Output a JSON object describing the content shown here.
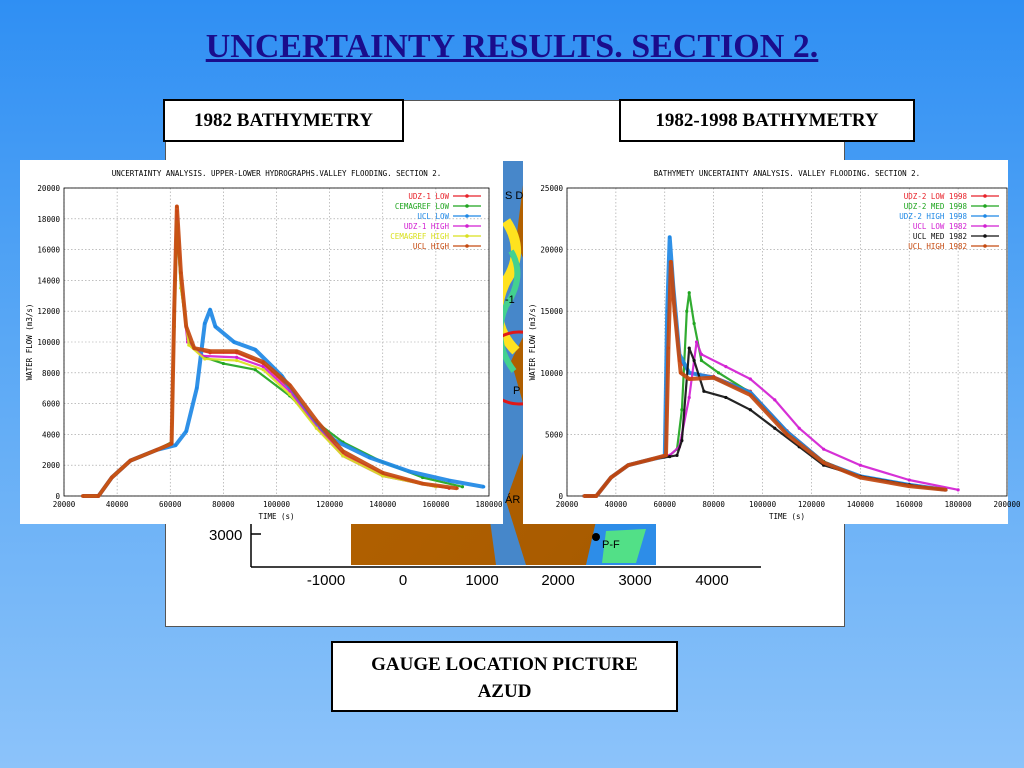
{
  "slide": {
    "title": "UNCERTAINTY RESULTS. SECTION 2.",
    "label_left": "1982 BATHYMETRY",
    "label_right": "1982-1998 BATHYMETRY",
    "label_bottom_line1": "GAUGE LOCATION PICTURE",
    "label_bottom_line2": "AZUD"
  },
  "background_map": {
    "x_ticks": [
      "-1000",
      "0",
      "1000",
      "2000",
      "3000",
      "4000"
    ],
    "y_tick": "3000",
    "gauge_label": "P-F",
    "fragment_labels": [
      "S D",
      "-1",
      "P",
      "ÁR"
    ]
  },
  "chart_data": [
    {
      "type": "line",
      "title": "UNCERTAINTY ANALYSIS. UPPER-LOWER HYDROGRAPHS.VALLEY FLOODING. SECTION 2.",
      "xlabel": "TIME (s)",
      "ylabel": "WATER FLOW (m3/s)",
      "xlim": [
        20000,
        180000
      ],
      "ylim": [
        0,
        20000
      ],
      "xticks": [
        20000,
        40000,
        60000,
        80000,
        100000,
        120000,
        140000,
        160000,
        180000
      ],
      "yticks": [
        0,
        2000,
        4000,
        6000,
        8000,
        10000,
        12000,
        14000,
        16000,
        18000,
        20000
      ],
      "grid": true,
      "legend_position": "top-right",
      "series": [
        {
          "name": "UDZ-1 LOW",
          "color": "#e8222a",
          "marker": "+",
          "points": [
            [
              27000,
              0
            ],
            [
              33000,
              0
            ],
            [
              38000,
              1200
            ],
            [
              45000,
              2300
            ],
            [
              55000,
              3000
            ],
            [
              60500,
              3400
            ],
            [
              61500,
              12000
            ],
            [
              62500,
              18500
            ],
            [
              64000,
              14000
            ],
            [
              66500,
              10200
            ],
            [
              70000,
              9500
            ],
            [
              75000,
              9300
            ],
            [
              85000,
              9300
            ],
            [
              95000,
              8600
            ],
            [
              105000,
              7000
            ],
            [
              115000,
              4600
            ],
            [
              125000,
              2700
            ],
            [
              140000,
              1400
            ],
            [
              155000,
              800
            ],
            [
              165000,
              500
            ]
          ]
        },
        {
          "name": "CEMAGREF LOW",
          "color": "#1fa51f",
          "marker": "+",
          "points": [
            [
              27000,
              0
            ],
            [
              33000,
              0
            ],
            [
              38000,
              1200
            ],
            [
              45000,
              2300
            ],
            [
              55000,
              3000
            ],
            [
              60500,
              3500
            ],
            [
              61500,
              11000
            ],
            [
              62500,
              17500
            ],
            [
              64000,
              13500
            ],
            [
              67000,
              10000
            ],
            [
              73000,
              9000
            ],
            [
              80000,
              8600
            ],
            [
              92000,
              8200
            ],
            [
              105000,
              6500
            ],
            [
              115000,
              4800
            ],
            [
              125000,
              3500
            ],
            [
              140000,
              2200
            ],
            [
              155000,
              1200
            ],
            [
              170000,
              600
            ]
          ]
        },
        {
          "name": "UCL LOW",
          "color": "#1e88e5",
          "marker": "o",
          "points": [
            [
              27000,
              0
            ],
            [
              33000,
              0
            ],
            [
              38000,
              1200
            ],
            [
              45000,
              2300
            ],
            [
              55000,
              3000
            ],
            [
              62000,
              3300
            ],
            [
              66000,
              4200
            ],
            [
              70000,
              7000
            ],
            [
              73000,
              11200
            ],
            [
              75000,
              12100
            ],
            [
              77000,
              11000
            ],
            [
              84000,
              10000
            ],
            [
              92000,
              9500
            ],
            [
              102000,
              7800
            ],
            [
              112000,
              5200
            ],
            [
              122000,
              3600
            ],
            [
              135000,
              2500
            ],
            [
              150000,
              1600
            ],
            [
              165000,
              1000
            ],
            [
              178000,
              600
            ]
          ]
        },
        {
          "name": "UDZ-1 HIGH",
          "color": "#d21fd2",
          "marker": "x",
          "points": [
            [
              27000,
              0
            ],
            [
              33000,
              0
            ],
            [
              38000,
              1200
            ],
            [
              45000,
              2300
            ],
            [
              55000,
              3000
            ],
            [
              60500,
              3400
            ],
            [
              61500,
              11500
            ],
            [
              62500,
              18000
            ],
            [
              64000,
              13800
            ],
            [
              66500,
              10000
            ],
            [
              72000,
              9100
            ],
            [
              85000,
              9000
            ],
            [
              95000,
              8400
            ],
            [
              105000,
              6800
            ],
            [
              115000,
              4500
            ],
            [
              125000,
              2600
            ],
            [
              140000,
              1300
            ],
            [
              160000,
              600
            ]
          ]
        },
        {
          "name": "CEMAGREF HIGH",
          "color": "#d9e01f",
          "marker": "+",
          "points": [
            [
              27000,
              0
            ],
            [
              33000,
              0
            ],
            [
              38000,
              1200
            ],
            [
              45000,
              2300
            ],
            [
              55000,
              3000
            ],
            [
              60500,
              3400
            ],
            [
              61500,
              11000
            ],
            [
              62500,
              17800
            ],
            [
              64000,
              13500
            ],
            [
              67000,
              9800
            ],
            [
              73000,
              8900
            ],
            [
              85000,
              8800
            ],
            [
              95000,
              8200
            ],
            [
              105000,
              6600
            ],
            [
              115000,
              4400
            ],
            [
              125000,
              2600
            ],
            [
              140000,
              1300
            ],
            [
              160000,
              600
            ]
          ]
        },
        {
          "name": "UCL HIGH",
          "color": "#c54a10",
          "marker": "*",
          "points": [
            [
              27000,
              0
            ],
            [
              33000,
              0
            ],
            [
              38000,
              1200
            ],
            [
              45000,
              2300
            ],
            [
              55000,
              3000
            ],
            [
              60500,
              3400
            ],
            [
              61500,
              12000
            ],
            [
              62500,
              18800
            ],
            [
              64000,
              14500
            ],
            [
              66000,
              11000
            ],
            [
              69000,
              9600
            ],
            [
              75000,
              9400
            ],
            [
              85000,
              9400
            ],
            [
              95000,
              8700
            ],
            [
              105000,
              7200
            ],
            [
              115000,
              4900
            ],
            [
              125000,
              2900
            ],
            [
              140000,
              1500
            ],
            [
              155000,
              800
            ],
            [
              168000,
              500
            ]
          ]
        }
      ]
    },
    {
      "type": "line",
      "title": "BATHYMETY UNCERTAINTY ANALYSIS. VALLEY FLOODING. SECTION 2.",
      "xlabel": "TIME (s)",
      "ylabel": "WATER FLOW (m3/s)",
      "xlim": [
        20000,
        200000
      ],
      "ylim": [
        0,
        25000
      ],
      "xticks": [
        20000,
        40000,
        60000,
        80000,
        100000,
        120000,
        140000,
        160000,
        180000,
        200000
      ],
      "yticks": [
        0,
        5000,
        10000,
        15000,
        20000,
        25000
      ],
      "grid": true,
      "legend_position": "top-right",
      "series": [
        {
          "name": "UDZ-2 LOW 1998",
          "color": "#e8222a",
          "marker": "+",
          "points": [
            [
              27000,
              0
            ],
            [
              32000,
              0
            ],
            [
              38000,
              1500
            ],
            [
              45000,
              2500
            ],
            [
              55000,
              3000
            ],
            [
              60500,
              3300
            ],
            [
              61000,
              12000
            ],
            [
              62000,
              19000
            ],
            [
              63500,
              16000
            ],
            [
              66000,
              11000
            ],
            [
              70000,
              10000
            ],
            [
              80000,
              9700
            ],
            [
              95000,
              8500
            ],
            [
              110000,
              5300
            ],
            [
              125000,
              2800
            ],
            [
              140000,
              1600
            ],
            [
              160000,
              900
            ],
            [
              175000,
              500
            ]
          ]
        },
        {
          "name": "UDZ-2 MED 1998",
          "color": "#1fa51f",
          "marker": "+",
          "points": [
            [
              27000,
              0
            ],
            [
              32000,
              0
            ],
            [
              38000,
              1500
            ],
            [
              45000,
              2500
            ],
            [
              55000,
              3000
            ],
            [
              62000,
              3300
            ],
            [
              65000,
              3800
            ],
            [
              67000,
              7000
            ],
            [
              69000,
              15000
            ],
            [
              70000,
              16500
            ],
            [
              72000,
              14000
            ],
            [
              75000,
              11000
            ],
            [
              82000,
              10000
            ],
            [
              95000,
              8400
            ],
            [
              110000,
              5200
            ],
            [
              125000,
              2800
            ],
            [
              140000,
              1600
            ],
            [
              160000,
              900
            ],
            [
              175000,
              500
            ]
          ]
        },
        {
          "name": "UDZ-2 HIGH 1998",
          "color": "#1e88e5",
          "marker": "o",
          "points": [
            [
              27000,
              0
            ],
            [
              32000,
              0
            ],
            [
              38000,
              1500
            ],
            [
              45000,
              2500
            ],
            [
              55000,
              3000
            ],
            [
              60000,
              3200
            ],
            [
              61000,
              15000
            ],
            [
              62000,
              21000
            ],
            [
              63500,
              17000
            ],
            [
              66000,
              11500
            ],
            [
              70000,
              10000
            ],
            [
              80000,
              9600
            ],
            [
              95000,
              8400
            ],
            [
              110000,
              5200
            ],
            [
              125000,
              2700
            ],
            [
              140000,
              1600
            ],
            [
              160000,
              900
            ],
            [
              175000,
              500
            ]
          ]
        },
        {
          "name": "UCL LOW 1982",
          "color": "#d21fd2",
          "marker": "x",
          "points": [
            [
              27000,
              0
            ],
            [
              32000,
              0
            ],
            [
              38000,
              1500
            ],
            [
              45000,
              2500
            ],
            [
              55000,
              3000
            ],
            [
              62000,
              3300
            ],
            [
              66000,
              4000
            ],
            [
              70000,
              8000
            ],
            [
              73000,
              12500
            ],
            [
              75000,
              11500
            ],
            [
              85000,
              10500
            ],
            [
              95000,
              9500
            ],
            [
              105000,
              7800
            ],
            [
              115000,
              5500
            ],
            [
              125000,
              3800
            ],
            [
              140000,
              2500
            ],
            [
              160000,
              1300
            ],
            [
              180000,
              500
            ]
          ]
        },
        {
          "name": "UCL MED 1982",
          "color": "#111111",
          "marker": "^",
          "points": [
            [
              27000,
              0
            ],
            [
              32000,
              0
            ],
            [
              38000,
              1500
            ],
            [
              45000,
              2500
            ],
            [
              55000,
              3000
            ],
            [
              62000,
              3200
            ],
            [
              65000,
              3300
            ],
            [
              67000,
              4500
            ],
            [
              70000,
              12000
            ],
            [
              72000,
              11000
            ],
            [
              76000,
              8500
            ],
            [
              85000,
              8000
            ],
            [
              95000,
              7000
            ],
            [
              105000,
              5500
            ],
            [
              115000,
              4000
            ],
            [
              125000,
              2500
            ],
            [
              140000,
              1600
            ],
            [
              160000,
              900
            ],
            [
              175000,
              500
            ]
          ]
        },
        {
          "name": "UCL HIGH 1982",
          "color": "#c54a10",
          "marker": "*",
          "points": [
            [
              27000,
              0
            ],
            [
              32000,
              0
            ],
            [
              38000,
              1500
            ],
            [
              45000,
              2500
            ],
            [
              55000,
              3000
            ],
            [
              60500,
              3300
            ],
            [
              61500,
              12000
            ],
            [
              62500,
              19000
            ],
            [
              64000,
              15000
            ],
            [
              66500,
              10000
            ],
            [
              70000,
              9500
            ],
            [
              80000,
              9600
            ],
            [
              95000,
              8200
            ],
            [
              110000,
              5000
            ],
            [
              125000,
              2700
            ],
            [
              140000,
              1500
            ],
            [
              160000,
              800
            ],
            [
              175000,
              500
            ]
          ]
        }
      ]
    }
  ]
}
